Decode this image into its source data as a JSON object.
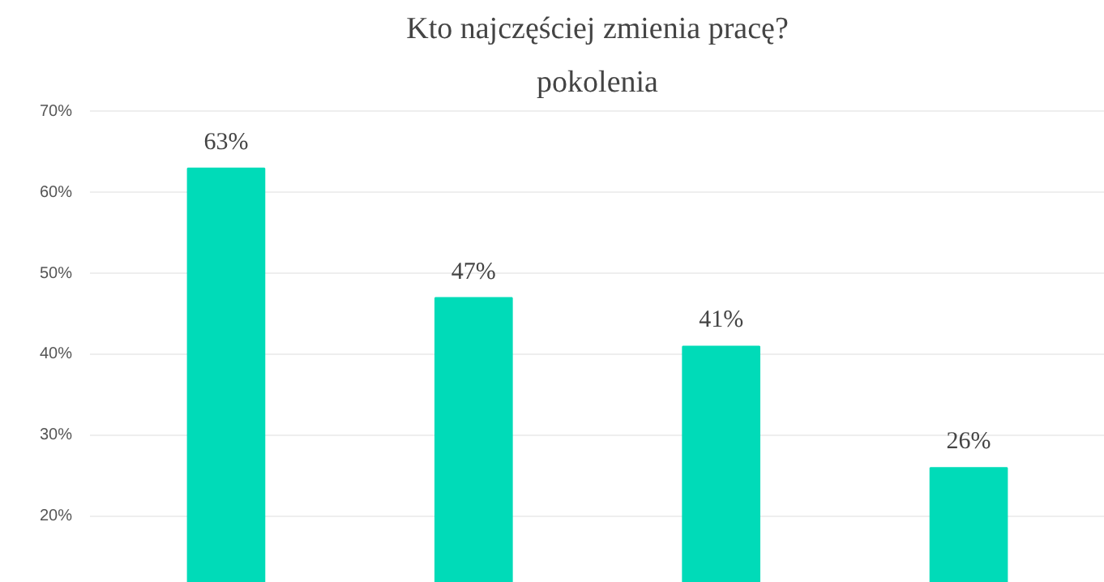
{
  "chart_data": {
    "type": "bar",
    "title": "Kto najczęściej zmienia pracę?",
    "subtitle": "pokolenia",
    "categories": [
      null,
      null,
      null,
      null
    ],
    "values": [
      63,
      47,
      41,
      26
    ],
    "value_labels": [
      "63%",
      "47%",
      "41%",
      "26%"
    ],
    "color": "#00dbb8",
    "ylim": [
      11.8,
      70.5
    ],
    "yticks": [
      {
        "value": 20,
        "label": "20%"
      },
      {
        "value": 30,
        "label": "30%"
      },
      {
        "value": 40,
        "label": "40%"
      },
      {
        "value": 50,
        "label": "50%"
      },
      {
        "value": 60,
        "label": "60%"
      },
      {
        "value": 70,
        "label": "70%"
      }
    ],
    "grid": "y"
  }
}
